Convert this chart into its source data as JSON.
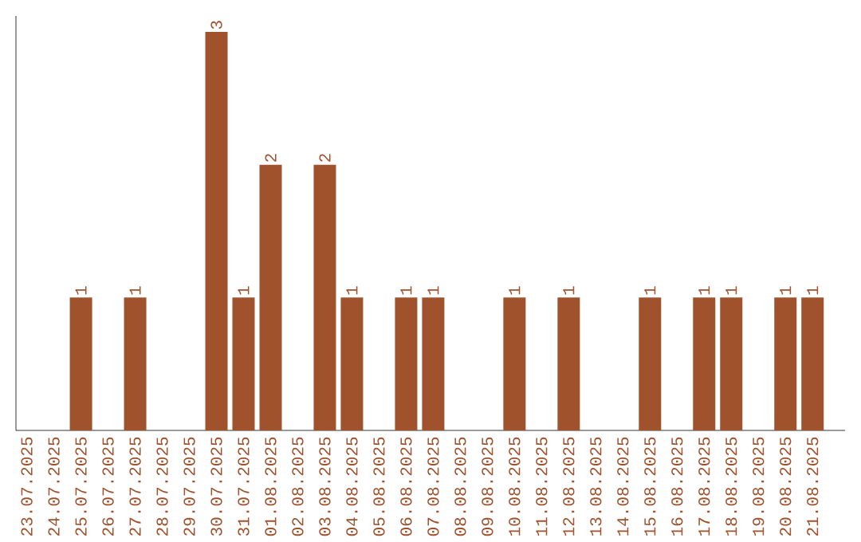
{
  "chart_data": {
    "type": "bar",
    "categories": [
      "23.07.2025",
      "24.07.2025",
      "25.07.2025",
      "26.07.2025",
      "27.07.2025",
      "28.07.2025",
      "29.07.2025",
      "30.07.2025",
      "31.07.2025",
      "01.08.2025",
      "02.08.2025",
      "03.08.2025",
      "04.08.2025",
      "05.08.2025",
      "06.08.2025",
      "07.08.2025",
      "08.08.2025",
      "09.08.2025",
      "10.08.2025",
      "11.08.2025",
      "12.08.2025",
      "13.08.2025",
      "14.08.2025",
      "15.08.2025",
      "16.08.2025",
      "17.08.2025",
      "18.08.2025",
      "19.08.2025",
      "20.08.2025",
      "21.08.2025"
    ],
    "values": [
      0,
      0,
      1,
      0,
      1,
      0,
      0,
      3,
      1,
      2,
      0,
      2,
      1,
      0,
      1,
      1,
      0,
      0,
      1,
      0,
      1,
      0,
      0,
      1,
      0,
      1,
      1,
      0,
      1,
      1
    ],
    "value_labels": [
      null,
      null,
      "1",
      null,
      "1",
      null,
      null,
      "3",
      "1",
      "2",
      null,
      "2",
      "1",
      null,
      "1",
      "1",
      null,
      null,
      "1",
      null,
      "1",
      null,
      null,
      "1",
      null,
      "1",
      "1",
      null,
      "1",
      "1"
    ],
    "color": "#a0522d",
    "grid": false
  }
}
